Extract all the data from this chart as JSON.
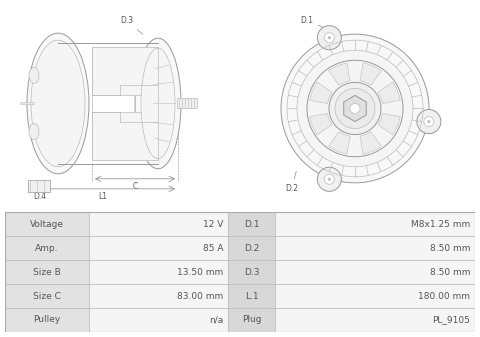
{
  "background_color": "#ffffff",
  "table": {
    "left_col1_label": [
      "Voltage",
      "Amp.",
      "Size B",
      "Size C",
      "Pulley"
    ],
    "left_col2_value": [
      "12 V",
      "85 A",
      "13.50 mm",
      "83.00 mm",
      "n/a"
    ],
    "right_col1_label": [
      "D.1",
      "D.2",
      "D.3",
      "L.1",
      "Plug"
    ],
    "right_col2_value": [
      "M8x1.25 mm",
      "8.50 mm",
      "8.50 mm",
      "180.00 mm",
      "PL_9105"
    ]
  },
  "label_bg": "#e2e2e2",
  "value_bg": "#f5f5f5",
  "mid_bg": "#d8d8d8",
  "line_color": "#bbbbbb",
  "text_color": "#555555",
  "drawing_color": "#999999",
  "drawing_color2": "#bbbbbb",
  "fig_width": 4.8,
  "fig_height": 3.37,
  "dpi": 100
}
